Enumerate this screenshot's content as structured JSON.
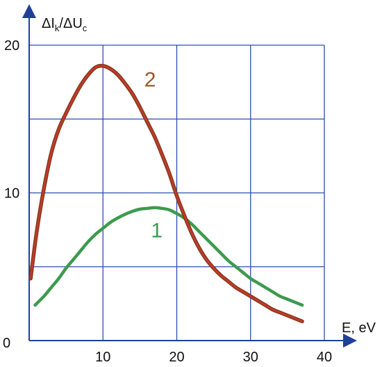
{
  "chart_data": {
    "type": "line",
    "title": "",
    "xlabel": "E, eV",
    "ylabel": {
      "delta1": "ΔI",
      "sub1": "k",
      "sep": "/ΔU",
      "sub2": "c"
    },
    "xlim": [
      0,
      40
    ],
    "ylim": [
      0,
      20
    ],
    "x_ticks": [
      "0",
      "10",
      "20",
      "30",
      "40"
    ],
    "y_ticks": [
      "10",
      "20"
    ],
    "grid": true,
    "colors": {
      "grid": "#2a4fb0",
      "axis": "#1f3f9a",
      "curve_2": "#c0392b",
      "curve_2_dark": "#7a3a1a",
      "curve_1": "#3c9a4e",
      "label_2": "#9a5a2a",
      "label_1": "#3c9a4e"
    },
    "series": [
      {
        "name": "2",
        "points": [
          [
            0.2,
            4.2
          ],
          [
            1,
            7.3
          ],
          [
            2,
            10.3
          ],
          [
            3,
            12.7
          ],
          [
            4,
            14.3
          ],
          [
            5,
            15.4
          ],
          [
            6,
            16.4
          ],
          [
            7,
            17.3
          ],
          [
            8,
            18.0
          ],
          [
            9,
            18.5
          ],
          [
            10,
            18.6
          ],
          [
            11,
            18.4
          ],
          [
            12,
            18.0
          ],
          [
            13,
            17.4
          ],
          [
            14,
            16.7
          ],
          [
            15,
            15.8
          ],
          [
            16,
            14.8
          ],
          [
            17,
            13.8
          ],
          [
            18,
            12.6
          ],
          [
            19,
            11.3
          ],
          [
            20,
            9.8
          ],
          [
            21,
            8.5
          ],
          [
            22,
            7.3
          ],
          [
            23,
            6.3
          ],
          [
            24,
            5.5
          ],
          [
            25,
            4.9
          ],
          [
            26,
            4.4
          ],
          [
            27,
            4.0
          ],
          [
            28,
            3.6
          ],
          [
            29,
            3.3
          ],
          [
            30,
            3.0
          ],
          [
            31,
            2.7
          ],
          [
            32,
            2.4
          ],
          [
            33,
            2.1
          ],
          [
            34,
            1.9
          ],
          [
            35,
            1.7
          ],
          [
            36,
            1.5
          ],
          [
            37,
            1.3
          ]
        ]
      },
      {
        "name": "1",
        "points": [
          [
            0.8,
            2.4
          ],
          [
            2,
            3.0
          ],
          [
            3,
            3.6
          ],
          [
            4,
            4.2
          ],
          [
            5,
            4.9
          ],
          [
            6,
            5.5
          ],
          [
            7,
            6.1
          ],
          [
            8,
            6.7
          ],
          [
            9,
            7.2
          ],
          [
            10,
            7.6
          ],
          [
            11,
            8.0
          ],
          [
            12,
            8.3
          ],
          [
            13,
            8.55
          ],
          [
            14,
            8.75
          ],
          [
            15,
            8.9
          ],
          [
            16,
            8.95
          ],
          [
            17,
            9.0
          ],
          [
            18,
            8.95
          ],
          [
            19,
            8.85
          ],
          [
            20,
            8.6
          ],
          [
            21,
            8.3
          ],
          [
            22,
            7.9
          ],
          [
            23,
            7.4
          ],
          [
            24,
            6.9
          ],
          [
            25,
            6.4
          ],
          [
            26,
            5.9
          ],
          [
            27,
            5.4
          ],
          [
            28,
            5.0
          ],
          [
            29,
            4.6
          ],
          [
            30,
            4.2
          ],
          [
            31,
            3.9
          ],
          [
            32,
            3.6
          ],
          [
            33,
            3.3
          ],
          [
            34,
            3.0
          ],
          [
            35,
            2.8
          ],
          [
            36,
            2.6
          ],
          [
            37,
            2.4
          ]
        ]
      }
    ],
    "annotations": [
      {
        "text": "2",
        "x": 15.6,
        "y": 17.2,
        "series": "2"
      },
      {
        "text": "1",
        "x": 16.5,
        "y": 7.0,
        "series": "1"
      }
    ]
  }
}
